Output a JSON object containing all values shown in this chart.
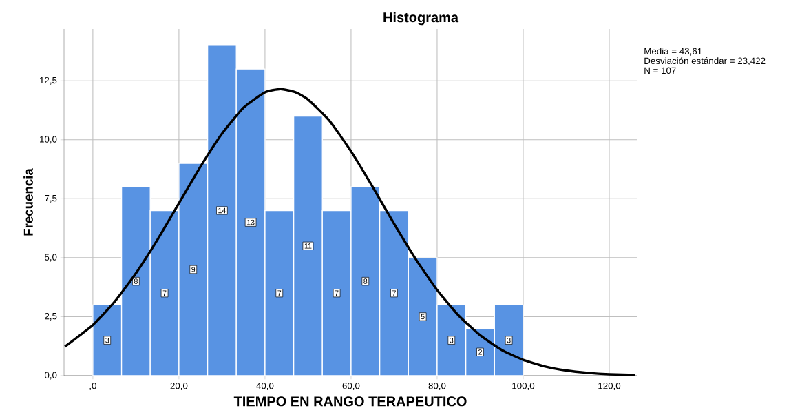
{
  "chart_data": {
    "type": "histogram",
    "title": "Histograma",
    "xlabel": "TIEMPO EN RANGO TERAPEUTICO",
    "ylabel": "Frecuencia",
    "bins": [
      0,
      6.67,
      13.33,
      20,
      26.67,
      33.33,
      40,
      46.67,
      53.33,
      60,
      66.67,
      73.33,
      80,
      86.67,
      93.33,
      100
    ],
    "values": [
      3,
      8,
      7,
      9,
      14,
      13,
      7,
      11,
      7,
      8,
      7,
      5,
      3,
      2,
      3
    ],
    "value_labels": [
      "3",
      "8",
      "7",
      "9",
      "14",
      "13",
      "7",
      "11",
      "7",
      "8",
      "7",
      "5",
      "3",
      "2",
      "3"
    ],
    "color": "#5893e3",
    "series": [
      {
        "type": "line",
        "color": "#000000",
        "marker": "none",
        "x": [
          -6.5,
          0,
          5,
          10,
          15,
          20,
          25,
          30,
          35,
          40,
          43.61,
          47,
          50,
          55,
          60,
          65,
          70,
          75,
          80,
          85,
          90,
          95,
          100,
          105,
          110,
          115,
          120,
          126
        ],
        "values": [
          1.23,
          2.15,
          3.12,
          4.34,
          5.76,
          7.31,
          8.86,
          10.26,
          11.36,
          12.01,
          12.15,
          12.02,
          11.71,
          10.8,
          9.51,
          8.01,
          6.44,
          4.95,
          3.63,
          2.55,
          1.71,
          1.09,
          0.67,
          0.39,
          0.22,
          0.12,
          0.06,
          0.03
        ]
      }
    ],
    "xlim": [
      -6.7,
      126.4
    ],
    "ylim": [
      0,
      14.7
    ],
    "xticks": [
      {
        "value": 0,
        "label": ",0"
      },
      {
        "value": 20,
        "label": "20,0"
      },
      {
        "value": 40,
        "label": "40,0"
      },
      {
        "value": 60,
        "label": "60,0"
      },
      {
        "value": 80,
        "label": "80,0"
      },
      {
        "value": 100,
        "label": "100,0"
      },
      {
        "value": 120,
        "label": "120,0"
      }
    ],
    "yticks": [
      {
        "value": 0,
        "label": "0,0"
      },
      {
        "value": 2.5,
        "label": "2,5"
      },
      {
        "value": 5,
        "label": "5,0"
      },
      {
        "value": 7.5,
        "label": "7,5"
      },
      {
        "value": 10,
        "label": "10,0"
      },
      {
        "value": 12.5,
        "label": "12,5"
      }
    ],
    "grid": true,
    "annotations": [
      "Media = 43,61",
      "Desviación estándar = 23,422",
      "N = 107"
    ]
  }
}
